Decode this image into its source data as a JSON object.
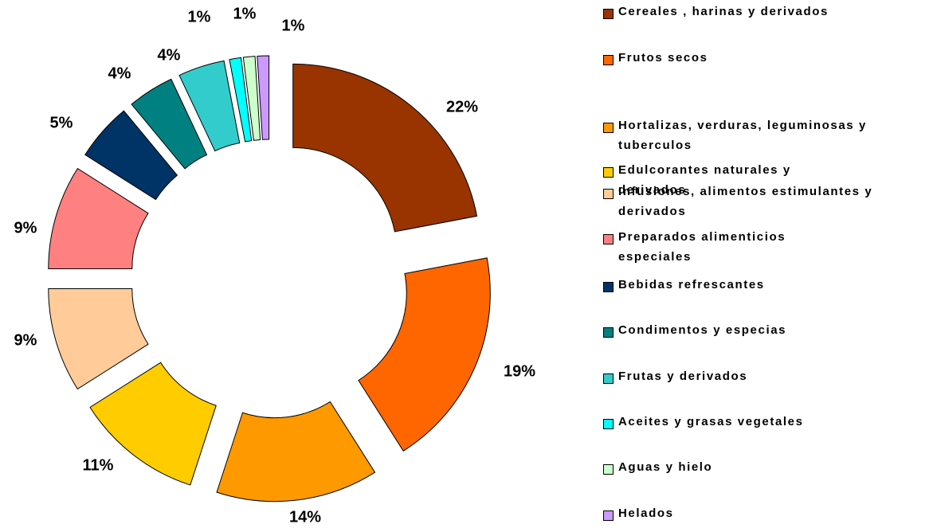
{
  "chart_data": {
    "type": "donut",
    "categories": [
      "Cereales , harinas y derivados",
      "Frutos secos",
      "Hortalizas, verduras, leguminosas y tuberculos",
      "Edulcorantes naturales y derivados",
      "Infusiones, alimentos estimulantes y derivados",
      "Preparados alimenticios especiales",
      "Bebidas refrescantes",
      "Condimentos y especias",
      "Frutas y derivados",
      "Aceites y grasas vegetales",
      "Aguas y hielo",
      "Helados"
    ],
    "values": [
      22,
      19,
      14,
      11,
      9,
      9,
      5,
      4,
      4,
      1,
      1,
      1
    ],
    "value_labels": [
      "22%",
      "19%",
      "14%",
      "11%",
      "9%",
      "9%",
      "5%",
      "4%",
      "4%",
      "1%",
      "1%",
      "1%"
    ],
    "colors": [
      "#993300",
      "#FF6600",
      "#FF9900",
      "#FFCC00",
      "#FFCC99",
      "#FF8080",
      "#003366",
      "#008080",
      "#33CCCC",
      "#00FFFF",
      "#CCFFCC",
      "#CC99FF"
    ],
    "legend": "right"
  }
}
